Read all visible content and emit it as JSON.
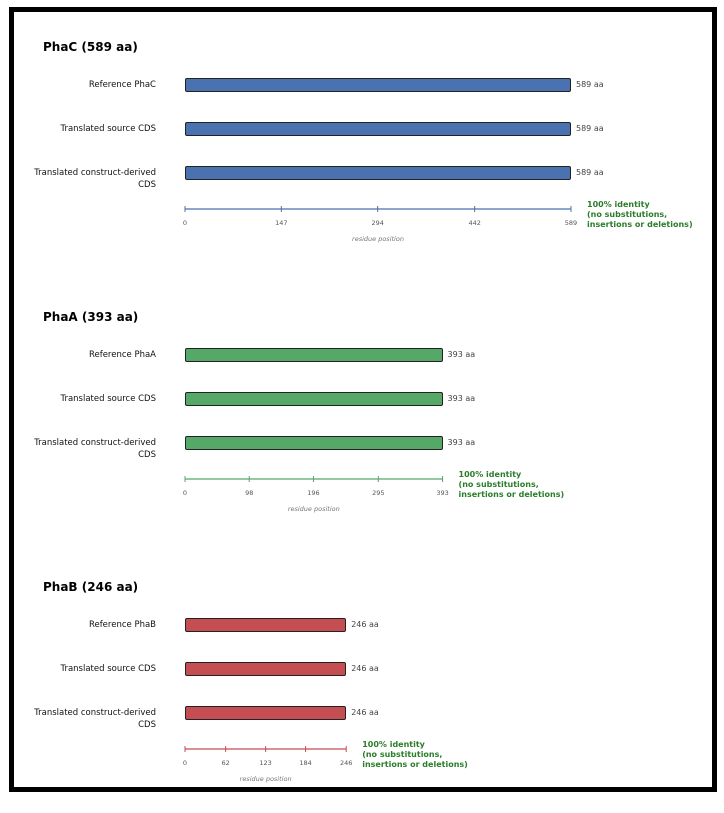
{
  "panels": [
    {
      "title": "PhaC  (589 aa)",
      "color": "#4a72b0",
      "identity_color": "#2a7d2a",
      "rows": [
        {
          "label": "Reference PhaC",
          "length": 589,
          "length_text": "589 aa"
        },
        {
          "label": "Translated source CDS",
          "length": 589,
          "length_text": "589 aa"
        },
        {
          "label": "Translated construct-derived CDS",
          "length": 589,
          "length_text": "589 aa"
        }
      ],
      "axis_max": 589,
      "ticks": [
        0,
        147,
        294,
        442,
        589
      ],
      "axis_label": "residue position",
      "identity_lines": [
        "100% identity",
        "(no substitutions,",
        "insertions or deletions)"
      ]
    },
    {
      "title": "PhaA  (393 aa)",
      "color": "#55a867",
      "identity_color": "#2a7d2a",
      "rows": [
        {
          "label": "Reference PhaA",
          "length": 393,
          "length_text": "393 aa"
        },
        {
          "label": "Translated source CDS",
          "length": 393,
          "length_text": "393 aa"
        },
        {
          "label": "Translated construct-derived CDS",
          "length": 393,
          "length_text": "393 aa"
        }
      ],
      "axis_max": 393,
      "ticks": [
        0,
        98,
        196,
        295,
        393
      ],
      "axis_label": "residue position",
      "identity_lines": [
        "100% identity",
        "(no substitutions,",
        "insertions or deletions)"
      ]
    },
    {
      "title": "PhaB  (246 aa)",
      "color": "#c44e52",
      "identity_color": "#2a7d2a",
      "rows": [
        {
          "label": "Reference PhaB",
          "length": 246,
          "length_text": "246 aa"
        },
        {
          "label": "Translated source CDS",
          "length": 246,
          "length_text": "246 aa"
        },
        {
          "label": "Translated construct-derived CDS",
          "length": 246,
          "length_text": "246 aa"
        }
      ],
      "axis_max": 246,
      "ticks": [
        0,
        62,
        123,
        184,
        246
      ],
      "axis_label": "residue position",
      "identity_lines": [
        "100% identity",
        "(no substitutions,",
        "insertions or deletions)"
      ]
    }
  ]
}
